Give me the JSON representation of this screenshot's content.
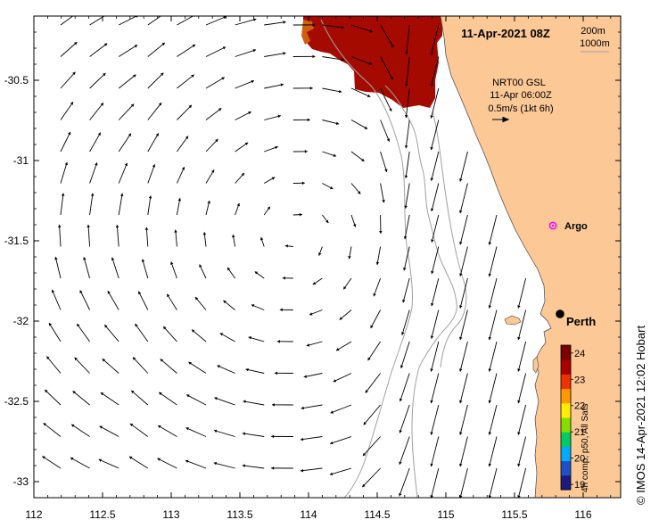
{
  "title": "11-Apr-2021 08Z",
  "contours": {
    "label_200": "200m",
    "label_1000": "1000m"
  },
  "current_legend": {
    "product": "NRT00 GSL",
    "time": "11-Apr 06:00Z",
    "scale_text": "0.5m/s (1kt 6h)"
  },
  "labels": {
    "argo": "Argo",
    "city": "Perth"
  },
  "colorbar": {
    "caption": "4h comp, p50, All Sats",
    "ticks": [
      "19",
      "20",
      "21",
      "22",
      "23",
      "24"
    ],
    "min": 18.8,
    "max": 24.3,
    "colors": [
      "#1a1a80",
      "#1f50c8",
      "#00aaff",
      "#00cc66",
      "#88dd00",
      "#ffee00",
      "#ff9900",
      "#ee3300",
      "#aa0000",
      "#7a0000"
    ]
  },
  "axes": {
    "x_ticks": [
      "112",
      "112.5",
      "113",
      "113.5",
      "114",
      "114.5",
      "115",
      "115.5",
      "116"
    ],
    "y_ticks": [
      "-30.5",
      "-31",
      "-31.5",
      "-32",
      "-32.5",
      "-33"
    ]
  },
  "colors": {
    "land": "#fcc896",
    "sst_patch": "#a50a00",
    "sst_edge": "#d06010",
    "contour": "#a0a0a0",
    "argo": "#ff00ff"
  },
  "credit": "© IMOS 14-Apr-2021 12:02 Hobart"
}
